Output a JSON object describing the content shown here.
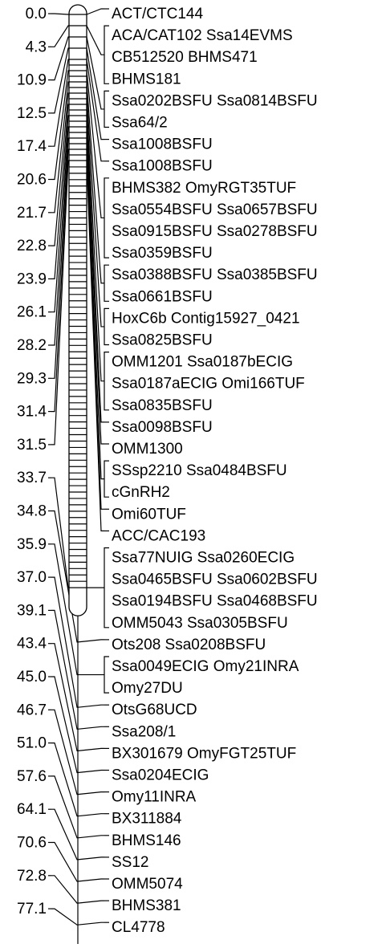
{
  "linkage_map": {
    "positions": [
      {
        "label": "0.0",
        "value": 0.0
      },
      {
        "label": "4.3",
        "value": 4.3
      },
      {
        "label": "10.9",
        "value": 10.9
      },
      {
        "label": "12.5",
        "value": 12.5
      },
      {
        "label": "17.4",
        "value": 17.4
      },
      {
        "label": "20.6",
        "value": 20.6
      },
      {
        "label": "21.7",
        "value": 21.7
      },
      {
        "label": "22.8",
        "value": 22.8
      },
      {
        "label": "23.9",
        "value": 23.9
      },
      {
        "label": "26.1",
        "value": 26.1
      },
      {
        "label": "28.2",
        "value": 28.2
      },
      {
        "label": "29.3",
        "value": 29.3
      },
      {
        "label": "31.4",
        "value": 31.4
      },
      {
        "label": "31.5",
        "value": 31.5
      },
      {
        "label": "33.7",
        "value": 33.7
      },
      {
        "label": "34.8",
        "value": 34.8
      },
      {
        "label": "35.9",
        "value": 35.9
      },
      {
        "label": "37.0",
        "value": 37.0
      },
      {
        "label": "39.1",
        "value": 39.1
      },
      {
        "label": "43.4",
        "value": 43.4
      },
      {
        "label": "45.0",
        "value": 45.0
      },
      {
        "label": "46.7",
        "value": 46.7
      },
      {
        "label": "51.0",
        "value": 51.0
      },
      {
        "label": "57.6",
        "value": 57.6
      },
      {
        "label": "64.1",
        "value": 64.1
      },
      {
        "label": "70.6",
        "value": 70.6
      },
      {
        "label": "72.8",
        "value": 72.8
      },
      {
        "label": "77.1",
        "value": 77.1
      }
    ],
    "marker_rows": [
      {
        "text": "ACT/CTC144",
        "position": 0
      },
      {
        "text": "ACA/CAT102 Ssa14EVMS",
        "position": 1
      },
      {
        "text": "CB512520 BHMS471",
        "position": 1
      },
      {
        "text": "BHMS181",
        "position": 1
      },
      {
        "text": "Ssa0202BSFU Ssa0814BSFU",
        "position": 2
      },
      {
        "text": "Ssa64/2",
        "position": 2
      },
      {
        "text": "Ssa1008BSFU",
        "position": 3
      },
      {
        "text": "Ssa1008BSFU",
        "position": 4
      },
      {
        "text": "BHMS382 OmyRGT35TUF",
        "position": 5
      },
      {
        "text": "Ssa0554BSFU Ssa0657BSFU",
        "position": 5
      },
      {
        "text": "Ssa0915BSFU Ssa0278BSFU",
        "position": 5
      },
      {
        "text": "Ssa0359BSFU",
        "position": 5
      },
      {
        "text": "Ssa0388BSFU Ssa0385BSFU",
        "position": 6
      },
      {
        "text": "Ssa0661BSFU",
        "position": 6
      },
      {
        "text": "HoxC6b Contig15927_0421",
        "position": 7
      },
      {
        "text": "Ssa0825BSFU",
        "position": 7
      },
      {
        "text": "OMM1201 Ssa0187bECIG",
        "position": 8
      },
      {
        "text": "Ssa0187aECIG Omi166TUF",
        "position": 8
      },
      {
        "text": "Ssa0835BSFU",
        "position": 8
      },
      {
        "text": "Ssa0098BSFU",
        "position": 9
      },
      {
        "text": "OMM1300",
        "position": 10
      },
      {
        "text": "SSsp2210 Ssa0484BSFU",
        "position": 11
      },
      {
        "text": "cGnRH2",
        "position": 11
      },
      {
        "text": "Omi60TUF",
        "position": 12
      },
      {
        "text": "ACC/CAC193",
        "position": 13
      },
      {
        "text": "Ssa77NUIG Ssa0260ECIG",
        "position": 14
      },
      {
        "text": "Ssa0465BSFU Ssa0602BSFU",
        "position": 14
      },
      {
        "text": "Ssa0194BSFU Ssa0468BSFU",
        "position": 14
      },
      {
        "text": "OMM5043 Ssa0305BSFU",
        "position": 14
      },
      {
        "text": "Ots208 Ssa0208BSFU",
        "position": 15
      },
      {
        "text": "Ssa0049ECIG Omy21INRA",
        "position": 16
      },
      {
        "text": "Omy27DU",
        "position": 16
      },
      {
        "text": "OtsG68UCD",
        "position": 17
      },
      {
        "text": "Ssa208/1",
        "position": 18
      },
      {
        "text": "BX301679 OmyFGT25TUF",
        "position": 19
      },
      {
        "text": "Ssa0204ECIG",
        "position": 20
      },
      {
        "text": "Omy11INRA",
        "position": 21
      },
      {
        "text": "BX311884",
        "position": 22
      },
      {
        "text": "BHMS146",
        "position": 23
      },
      {
        "text": "SS12",
        "position": 24
      },
      {
        "text": "OMM5074",
        "position": 25
      },
      {
        "text": "BHMS381",
        "position": 26
      },
      {
        "text": "CL4778",
        "position": 27
      }
    ]
  }
}
